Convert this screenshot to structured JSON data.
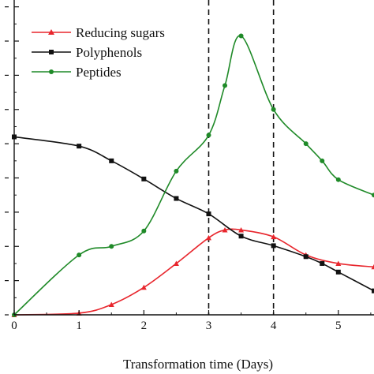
{
  "chart_data": {
    "type": "line",
    "xlabel": "Transformation time (Days)",
    "ylabel": "",
    "x_ticks": [
      0,
      1,
      2,
      3,
      4,
      5
    ],
    "xlim": [
      0,
      5.55
    ],
    "y_ticks": [
      0,
      1,
      2,
      3,
      4,
      5,
      6,
      7,
      8,
      9
    ],
    "ylim": [
      0,
      9.2
    ],
    "grid": false,
    "legend_position": "top-left",
    "vertical_lines": [
      3,
      4
    ],
    "series": [
      {
        "name": "Reducing sugars",
        "color": "#e8262d",
        "marker": "triangle",
        "x": [
          0,
          1,
          1.5,
          2,
          2.5,
          3,
          3.25,
          3.5,
          4,
          4.5,
          5,
          5.55
        ],
        "y": [
          0,
          0.05,
          0.3,
          0.8,
          1.5,
          2.25,
          2.48,
          2.48,
          2.28,
          1.75,
          1.5,
          1.4
        ]
      },
      {
        "name": "Polyphenols",
        "color": "#111111",
        "marker": "square",
        "x": [
          0,
          1,
          1.5,
          2,
          2.5,
          3,
          3.5,
          4,
          4.5,
          4.75,
          5,
          5.55
        ],
        "y": [
          5.2,
          4.93,
          4.5,
          3.97,
          3.4,
          2.95,
          2.3,
          2.02,
          1.7,
          1.5,
          1.25,
          0.7
        ]
      },
      {
        "name": "Peptides",
        "color": "#1f8a28",
        "marker": "circle",
        "x": [
          0,
          1,
          1.5,
          2,
          2.5,
          3,
          3.25,
          3.5,
          4,
          4.5,
          4.75,
          5,
          5.55
        ],
        "y": [
          0,
          1.75,
          2.0,
          2.45,
          4.2,
          5.25,
          6.7,
          8.15,
          6.0,
          5.0,
          4.5,
          3.95,
          3.5
        ]
      }
    ]
  }
}
